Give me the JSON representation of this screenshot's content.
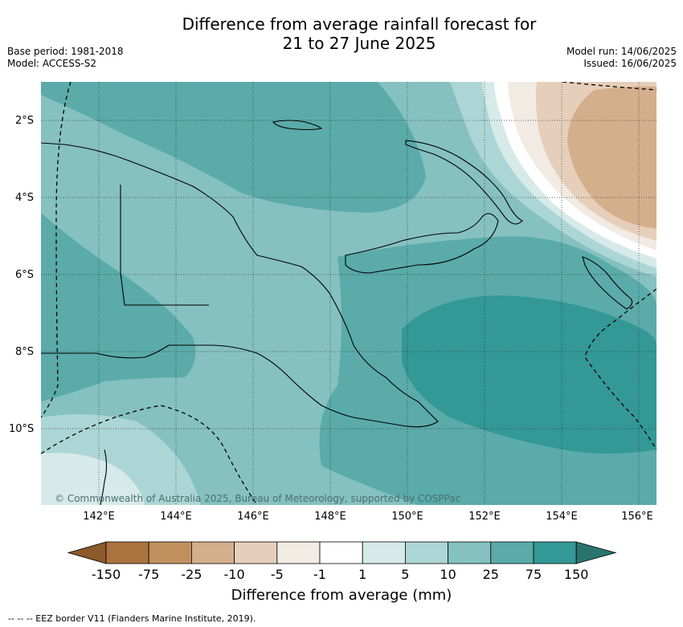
{
  "title": {
    "line1": "Difference from average rainfall forecast for",
    "line2": "21 to 27 June 2025"
  },
  "meta_left": {
    "base_period": "Base period: 1981-2018",
    "model": "Model: ACCESS-S2"
  },
  "meta_right": {
    "model_run": "Model run: 14/06/2025",
    "issued": "Issued: 16/06/2025"
  },
  "map": {
    "lat_labels": [
      "2°S",
      "4°S",
      "6°S",
      "8°S",
      "10°S"
    ],
    "lon_labels": [
      "142°E",
      "144°E",
      "146°E",
      "148°E",
      "150°E",
      "152°E",
      "154°E",
      "156°E"
    ],
    "copyright": "© Commonwealth of Australia 2025, Bureau of Meteorology, supported by COSPPac"
  },
  "colorbar": {
    "ticks": [
      "-150",
      "-75",
      "-25",
      "-10",
      "-5",
      "-1",
      "1",
      "5",
      "10",
      "25",
      "75",
      "150"
    ],
    "colors": [
      "#8c5a2b",
      "#ab733f",
      "#c2905f",
      "#d4af8c",
      "#e6cfba",
      "#f1ebe4",
      "#ffffff",
      "#d6eae9",
      "#acd6d5",
      "#85c1c0",
      "#5aabaa",
      "#339896",
      "#2a7470"
    ],
    "title": "Difference from average (mm)"
  },
  "footnote": "-- -- -- EEZ border V11 (Flanders Marine Institute, 2019)."
}
